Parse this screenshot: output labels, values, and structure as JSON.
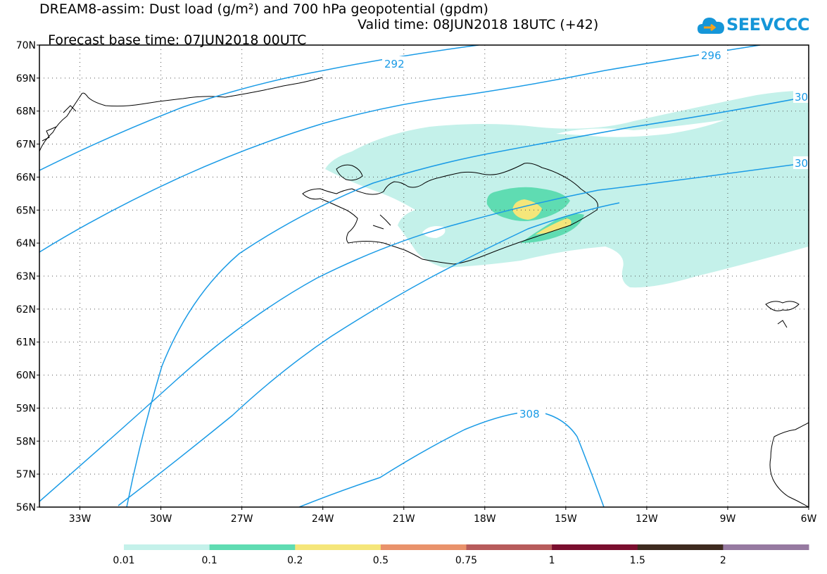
{
  "title": {
    "line1": "DREAM8-assim: Dust load (g/m²) and 700 hPa geopotential (gpdm)",
    "base_time": "Forecast base time: 07JUN2018 00UTC",
    "valid_time": "Valid time: 08JUN2018 18UTC (+42)"
  },
  "logo": {
    "text": "SEEVCCC",
    "icon": "cloud-icon",
    "color": "#1596d8"
  },
  "map_extent": {
    "lon_min": -34.5,
    "lon_max": -6,
    "lat_min": 56,
    "lat_max": 70
  },
  "lat_labels": [
    "70N",
    "69N",
    "68N",
    "67N",
    "66N",
    "65N",
    "64N",
    "63N",
    "62N",
    "61N",
    "60N",
    "59N",
    "58N",
    "57N",
    "56N"
  ],
  "lon_labels": [
    "33W",
    "30W",
    "27W",
    "24W",
    "21W",
    "18W",
    "15W",
    "12W",
    "9W",
    "6W"
  ],
  "contours": [
    {
      "label": "292"
    },
    {
      "label": "296"
    },
    {
      "label": "30"
    },
    {
      "label": "30"
    },
    {
      "label": "308"
    }
  ],
  "colorbar": {
    "labels": [
      "0.01",
      "0.1",
      "0.2",
      "0.5",
      "0.75",
      "1",
      "1.5",
      "2"
    ],
    "colors": [
      "#c4f1ea",
      "#5fdcb2",
      "#f5e67a",
      "#e9926b",
      "#b75b5b",
      "#7a0e2e",
      "#3e2a1f",
      "#967aa1"
    ]
  },
  "colors": {
    "contour": "#1a9be6",
    "grid": "#555555",
    "coast": "#000000"
  }
}
